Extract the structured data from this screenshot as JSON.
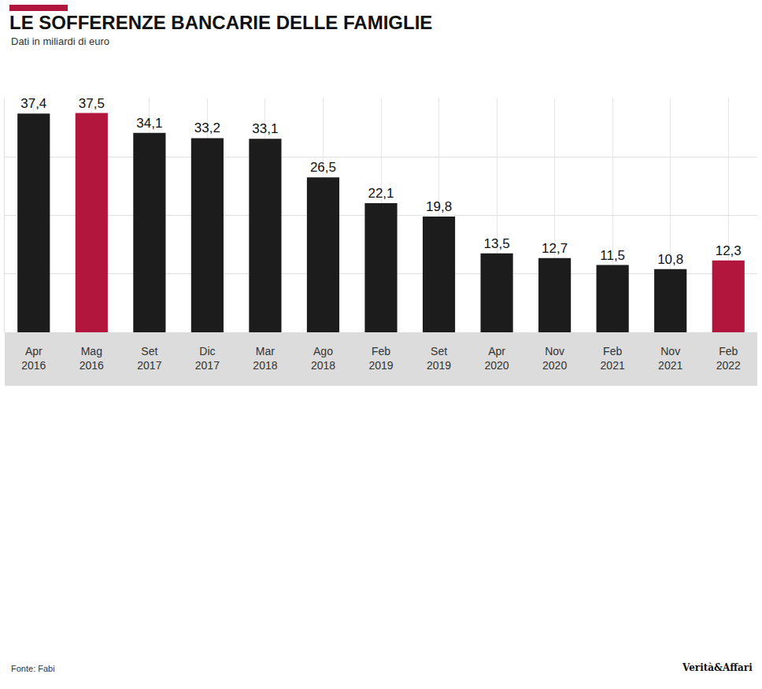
{
  "chart_data": {
    "type": "bar",
    "title": "LE SOFFERENZE BANCARIE DELLE FAMIGLIE",
    "subtitle": "Dati in miliardi di euro",
    "annotations": [
      "Fonte: Fabi",
      "Verità&Affari"
    ],
    "categories": [
      "Apr 2016",
      "Mag 2016",
      "Set 2017",
      "Dic 2017",
      "Mar 2018",
      "Ago 2018",
      "Feb 2019",
      "Set 2019",
      "Apr 2020",
      "Nov 2020",
      "Feb 2021",
      "Nov 2021",
      "Feb 2022"
    ],
    "values": [
      37.4,
      37.5,
      34.1,
      33.2,
      33.1,
      26.5,
      22.1,
      19.8,
      13.5,
      12.7,
      11.5,
      10.8,
      12.3
    ],
    "value_labels": [
      "37,4",
      "37,5",
      "34,1",
      "33,2",
      "33,1",
      "26,5",
      "22,1",
      "19,8",
      "13,5",
      "12,7",
      "11,5",
      "10,8",
      "12,3"
    ],
    "colors": [
      "#1c1c1c",
      "#b3163c",
      "#1c1c1c",
      "#1c1c1c",
      "#1c1c1c",
      "#1c1c1c",
      "#1c1c1c",
      "#1c1c1c",
      "#1c1c1c",
      "#1c1c1c",
      "#1c1c1c",
      "#1c1c1c",
      "#b3163c"
    ],
    "ylim": [
      0,
      40
    ],
    "yticks": [
      0,
      10,
      20,
      30,
      40
    ],
    "grid": true,
    "data_labels": true,
    "tick_labels": "x"
  }
}
